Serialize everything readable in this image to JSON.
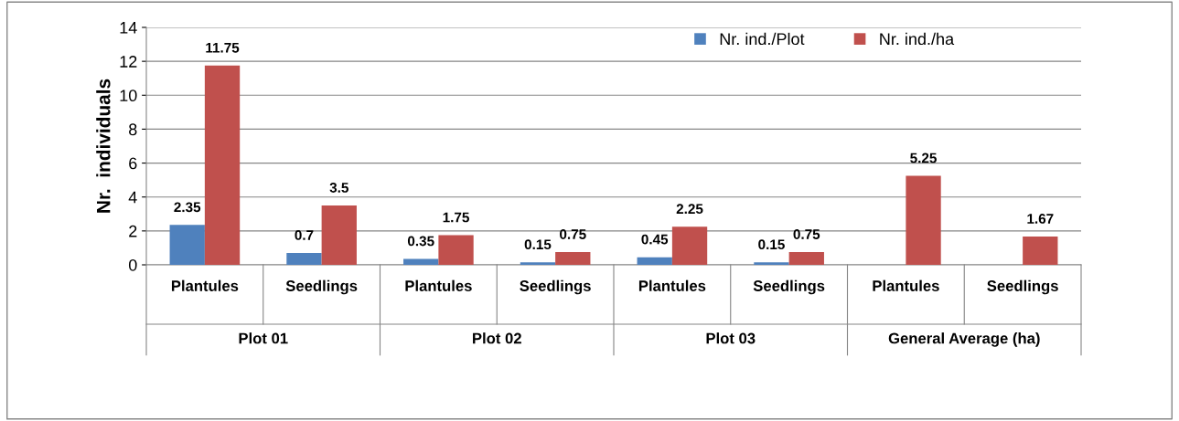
{
  "chart_data": {
    "type": "bar",
    "ylabel": "Nr.  individuals",
    "categories": [
      "Plantules",
      "Seedlings",
      "Plantules",
      "Seedlings",
      "Plantules",
      "Seedlings",
      "Plantules",
      "Seedlings"
    ],
    "series": [
      {
        "name": "Nr. ind./Plot",
        "color": "#4f81bd",
        "values": [
          2.35,
          0.7,
          0.35,
          0.15,
          0.45,
          0.15,
          null,
          null
        ]
      },
      {
        "name": "Nr. ind./ha",
        "color": "#c0504d",
        "values": [
          11.75,
          3.5,
          1.75,
          0.75,
          2.25,
          0.75,
          5.25,
          1.67
        ]
      }
    ],
    "annotations": [
      "Plot 01",
      "Plot 02",
      "Plot 03",
      "General Average (ha)"
    ],
    "ylim": [
      0,
      14
    ],
    "yticks": [
      0,
      2,
      4,
      6,
      8,
      10,
      12,
      14
    ],
    "grid": "y",
    "legend": "top right",
    "data_labels": true
  }
}
